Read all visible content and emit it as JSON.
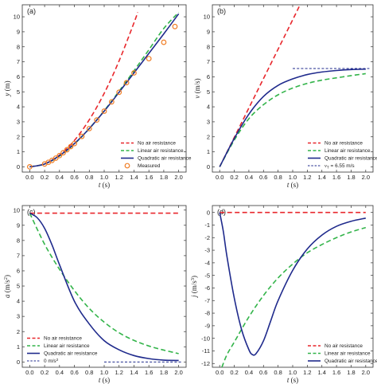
{
  "colors": {
    "no_air": "#e8272c",
    "linear": "#33b44a",
    "quadratic": "#1f2a8c",
    "measured": "#f07e26",
    "terminal": "#1f2a8c",
    "zero": "#1f2a8c"
  },
  "chart_data": [
    {
      "type": "line",
      "panel_label": "(a)",
      "ylabel_sym": "y",
      "ylabel_unit": " (m)",
      "xlabel_sym": "t",
      "xlabel_unit": " (s)",
      "xlim": [
        -0.1,
        2.1
      ],
      "ylim": [
        -0.35,
        10.8
      ],
      "xticks": [
        "0.0",
        "0.2",
        "0.4",
        "0.6",
        "0.8",
        "1.0",
        "1.2",
        "1.4",
        "1.6",
        "1.8",
        "2.0"
      ],
      "yticks": [
        "0",
        "1",
        "2",
        "3",
        "4",
        "5",
        "6",
        "7",
        "8",
        "9",
        "10"
      ],
      "legend_position": "bottom-right",
      "series": [
        {
          "key": "no_air",
          "name": "No air resistance",
          "style": "dashed",
          "x": [
            0,
            0.2,
            0.4,
            0.6,
            0.8,
            1.0,
            1.2,
            1.4,
            1.45
          ],
          "y": [
            0,
            0.2,
            0.78,
            1.76,
            3.14,
            4.9,
            7.06,
            9.6,
            10.3
          ]
        },
        {
          "key": "linear",
          "name": "Linear air resistance",
          "style": "dashed",
          "x": [
            0,
            0.2,
            0.4,
            0.6,
            0.8,
            1.0,
            1.2,
            1.4,
            1.6,
            1.8,
            2.0
          ],
          "y": [
            0,
            0.19,
            0.72,
            1.52,
            2.55,
            3.74,
            5.04,
            6.4,
            7.8,
            9.22,
            10.3
          ]
        },
        {
          "key": "quadratic",
          "name": "Quadratic air resistance",
          "style": "solid",
          "x": [
            0,
            0.2,
            0.4,
            0.6,
            0.8,
            1.0,
            1.2,
            1.4,
            1.6,
            1.8,
            2.0
          ],
          "y": [
            0,
            0.19,
            0.75,
            1.55,
            2.55,
            3.71,
            4.97,
            6.26,
            7.56,
            8.86,
            10.2
          ]
        },
        {
          "key": "measured",
          "name": "Measured",
          "style": "marker",
          "x": [
            0,
            0.2,
            0.25,
            0.3,
            0.35,
            0.4,
            0.45,
            0.5,
            0.55,
            0.6,
            0.7,
            0.8,
            0.9,
            1.0,
            1.1,
            1.2,
            1.3,
            1.4,
            1.6,
            1.8,
            1.95
          ],
          "y": [
            0,
            0.19,
            0.3,
            0.43,
            0.58,
            0.75,
            0.94,
            1.14,
            1.35,
            1.55,
            2.03,
            2.55,
            3.12,
            3.71,
            4.33,
            4.97,
            5.61,
            6.26,
            7.21,
            8.3,
            9.35
          ]
        }
      ]
    },
    {
      "type": "line",
      "panel_label": "(b)",
      "ylabel_sym": "v",
      "ylabel_unit": " (m/s)",
      "xlabel_sym": "t",
      "xlabel_unit": " (s)",
      "xlim": [
        -0.1,
        2.1
      ],
      "ylim": [
        -0.35,
        10.8
      ],
      "xticks": [
        "0.0",
        "0.2",
        "0.4",
        "0.6",
        "0.8",
        "1.0",
        "1.2",
        "1.4",
        "1.6",
        "1.8",
        "2.0"
      ],
      "yticks": [
        "0",
        "1",
        "2",
        "3",
        "4",
        "5",
        "6",
        "7",
        "8",
        "9",
        "10"
      ],
      "legend_position": "bottom-right",
      "series": [
        {
          "key": "no_air",
          "name": "No air resistance",
          "style": "dashed",
          "x": [
            0,
            0.5,
            1.0,
            1.1
          ],
          "y": [
            0,
            4.9,
            9.8,
            10.8
          ]
        },
        {
          "key": "linear",
          "name": "Linear air resistance",
          "style": "dashed",
          "x": [
            0,
            0.2,
            0.4,
            0.6,
            0.8,
            1.0,
            1.2,
            1.4,
            1.6,
            1.8,
            2.0
          ],
          "y": [
            0,
            1.78,
            3.21,
            4.14,
            4.8,
            5.25,
            5.56,
            5.78,
            5.93,
            6.08,
            6.21
          ]
        },
        {
          "key": "quadratic",
          "name": "Quadratic air resistance",
          "style": "solid",
          "x": [
            0,
            0.2,
            0.4,
            0.6,
            0.8,
            1.0,
            1.2,
            1.4,
            1.6,
            1.8,
            2.0
          ],
          "y": [
            0,
            1.89,
            3.51,
            4.69,
            5.43,
            5.86,
            6.15,
            6.32,
            6.42,
            6.48,
            6.51
          ]
        },
        {
          "key": "terminal",
          "name": "vT = 6.55 m/s",
          "name_parts": [
            "v",
            "T",
            " = 6.55 m/s"
          ],
          "style": "dotted",
          "x": [
            1.0,
            2.05
          ],
          "y": [
            6.55,
            6.55
          ]
        }
      ]
    },
    {
      "type": "line",
      "panel_label": "(c)",
      "ylabel_sym": "a",
      "ylabel_unit": " (m/s",
      "ylabel_sup": "2",
      "ylabel_end": ")",
      "xlabel_sym": "t",
      "xlabel_unit": " (s)",
      "xlim": [
        -0.1,
        2.1
      ],
      "ylim": [
        -0.35,
        10.3
      ],
      "xticks": [
        "0.0",
        "0.2",
        "0.4",
        "0.6",
        "0.8",
        "1.0",
        "1.2",
        "1.4",
        "1.6",
        "1.8",
        "2.0"
      ],
      "yticks": [
        "0",
        "1",
        "2",
        "3",
        "4",
        "5",
        "6",
        "7",
        "8",
        "9",
        "10"
      ],
      "legend_position": "bottom-left",
      "series": [
        {
          "key": "no_air",
          "name": "No air resistance",
          "style": "dashed",
          "x": [
            0,
            2.0
          ],
          "y": [
            9.8,
            9.8
          ]
        },
        {
          "key": "linear",
          "name": "Linear air resistance",
          "style": "dashed",
          "x": [
            0,
            0.2,
            0.4,
            0.6,
            0.8,
            1.0,
            1.2,
            1.4,
            1.6,
            1.8,
            2.0
          ],
          "y": [
            9.8,
            7.75,
            6.1,
            4.7,
            3.52,
            2.62,
            1.92,
            1.42,
            1.05,
            0.78,
            0.55
          ]
        },
        {
          "key": "quadratic",
          "name": "Quadratic air resistance",
          "style": "solid",
          "x": [
            0,
            0.1,
            0.2,
            0.3,
            0.4,
            0.6,
            0.8,
            1.0,
            1.2,
            1.4,
            1.6,
            1.8,
            2.0
          ],
          "y": [
            9.8,
            9.5,
            8.8,
            7.7,
            6.4,
            4.0,
            2.5,
            1.4,
            0.8,
            0.42,
            0.22,
            0.12,
            0.1
          ]
        },
        {
          "key": "zero",
          "name": "0 m/s2",
          "name_parts": [
            "0 m/s",
            "2",
            ""
          ],
          "style": "dotted",
          "x": [
            1.0,
            2.05
          ],
          "y": [
            0,
            0
          ]
        }
      ]
    },
    {
      "type": "line",
      "panel_label": "(d)",
      "ylabel_sym": "j",
      "ylabel_unit": " (m/s",
      "ylabel_sup": "3",
      "ylabel_end": ")",
      "xlabel_sym": "t",
      "xlabel_unit": " (s)",
      "xlim": [
        -0.1,
        2.1
      ],
      "ylim": [
        -12.3,
        0.55
      ],
      "xticks": [
        "0.0",
        "0.2",
        "0.4",
        "0.6",
        "0.8",
        "1.0",
        "1.2",
        "1.4",
        "1.6",
        "1.8",
        "2.0"
      ],
      "yticks": [
        "0",
        "-1",
        "-2",
        "-3",
        "-4",
        "-5",
        "-6",
        "-7",
        "-8",
        "-9",
        "-10",
        "-11",
        "-12"
      ],
      "legend_position": "bottom-right",
      "series": [
        {
          "key": "no_air",
          "name": "No air resistance",
          "style": "dashed",
          "x": [
            0,
            2.0
          ],
          "y": [
            0,
            0
          ]
        },
        {
          "key": "linear",
          "name": "Linear air resistance",
          "style": "dashed",
          "x": [
            0.03,
            0.1,
            0.2,
            0.4,
            0.6,
            0.8,
            1.0,
            1.2,
            1.4,
            1.6,
            1.8,
            2.0
          ],
          "y": [
            -12.3,
            -11.3,
            -10.3,
            -8.3,
            -6.6,
            -5.2,
            -4.1,
            -3.2,
            -2.55,
            -2.0,
            -1.55,
            -1.2
          ]
        },
        {
          "key": "quadratic",
          "name": "Quadratic air resistance",
          "style": "solid",
          "x": [
            0,
            0.05,
            0.1,
            0.2,
            0.3,
            0.4,
            0.45,
            0.5,
            0.6,
            0.7,
            0.8,
            1.0,
            1.2,
            1.4,
            1.6,
            1.8,
            2.0
          ],
          "y": [
            0,
            -1.5,
            -3.5,
            -6.8,
            -9.3,
            -10.9,
            -11.3,
            -11.2,
            -10.2,
            -8.6,
            -7.0,
            -4.6,
            -2.9,
            -1.8,
            -1.1,
            -0.7,
            -0.45
          ]
        }
      ]
    }
  ]
}
